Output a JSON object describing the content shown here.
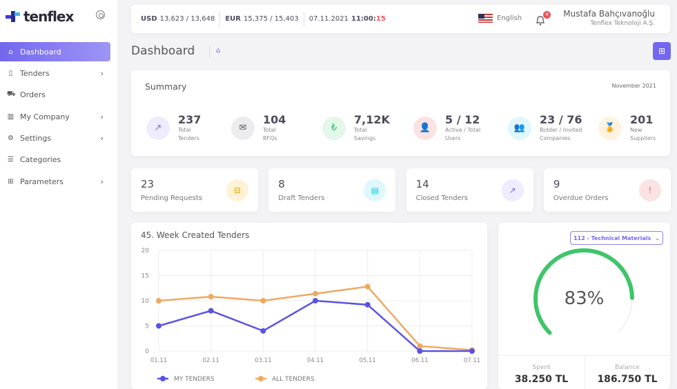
{
  "brand": "tenflex",
  "sidebar": {
    "items": [
      {
        "label": "Dashboard",
        "icon": "home-icon",
        "glyph": "⌂",
        "chev": false
      },
      {
        "label": "Tenders",
        "icon": "clipboard-icon",
        "glyph": "▯",
        "chev": true
      },
      {
        "label": "Orders",
        "icon": "truck-icon",
        "glyph": "⛟",
        "chev": false
      },
      {
        "label": "My Company",
        "icon": "building-icon",
        "glyph": "▥",
        "chev": true
      },
      {
        "label": "Settings",
        "icon": "gear-icon",
        "glyph": "⚙",
        "chev": true
      },
      {
        "label": "Categories",
        "icon": "list-icon",
        "glyph": "☰",
        "chev": false
      },
      {
        "label": "Parameters",
        "icon": "grid-icon",
        "glyph": "⊞",
        "chev": true
      }
    ]
  },
  "topbar": {
    "usd_label": "USD",
    "usd": "13,623 / 13,648",
    "eur_label": "EUR",
    "eur": "15,375 / 15,403",
    "date": "07.11.2021",
    "time_hm": "11:00:",
    "time_s": "15",
    "language": "English",
    "notifications": "4",
    "user_name": "Mustafa Bahçıvanoğlu",
    "company": "Tenflex Teknoloji A.Ş."
  },
  "page": {
    "title": "Dashboard"
  },
  "summary": {
    "title": "Summary",
    "period": "November 2021",
    "stats": [
      {
        "value": "237",
        "l1": "Total",
        "l2": "Tenders",
        "icon": "trending-up-icon",
        "glyph": "↗",
        "color": "#7367f0",
        "bg": "#eeecfd"
      },
      {
        "value": "104",
        "l1": "Total",
        "l2": "RFQs",
        "icon": "mail-icon",
        "glyph": "✉",
        "color": "#555",
        "bg": "#ececee"
      },
      {
        "value": "7,12K",
        "l1": "Total",
        "l2": "Savings",
        "icon": "lira-icon",
        "glyph": "₺",
        "color": "#28c76f",
        "bg": "#e3f7ea"
      },
      {
        "value": "5 / 12",
        "l1": "Active / Total",
        "l2": "Users",
        "icon": "user-icon",
        "glyph": "👤",
        "color": "#ea5455",
        "bg": "#fbe3e3"
      },
      {
        "value": "23 / 76",
        "l1": "Bidder / Invited",
        "l2": "Companies",
        "icon": "users-icon",
        "glyph": "👥",
        "color": "#00cfe8",
        "bg": "#e0f8fb"
      },
      {
        "value": "201",
        "l1": "New",
        "l2": "Suppliers",
        "icon": "award-icon",
        "glyph": "🏅",
        "color": "#ff9f43",
        "bg": "#fff3df"
      }
    ]
  },
  "cards": [
    {
      "value": "23",
      "label": "Pending Requests",
      "icon": "inbox-icon",
      "glyph": "⊟",
      "color": "#e6a700",
      "bg": "#fff3d6"
    },
    {
      "value": "8",
      "label": "Draft Tenders",
      "icon": "file-icon",
      "glyph": "▤",
      "color": "#00cfe8",
      "bg": "#dff8fb"
    },
    {
      "value": "14",
      "label": "Closed Tenders",
      "icon": "trending-up-icon",
      "glyph": "↗",
      "color": "#7367f0",
      "bg": "#eeecfd"
    },
    {
      "value": "9",
      "label": "Overdue Orders",
      "icon": "alert-circle-icon",
      "glyph": "!",
      "color": "#ea5455",
      "bg": "#fbe3e3"
    }
  ],
  "chart_data": {
    "type": "line",
    "title": "45. Week Created Tenders",
    "categories": [
      "01.11",
      "02.11",
      "03.11",
      "04.11",
      "05.11",
      "06.11",
      "07.11"
    ],
    "ylim": [
      0,
      20
    ],
    "yticks": [
      "0",
      "5",
      "10",
      "15",
      "20"
    ],
    "grid": true,
    "legend": "bottom-left",
    "series": [
      {
        "name": "MY TENDERS",
        "color": "#5a52e0",
        "values": [
          5,
          8,
          4,
          10,
          9.2,
          0,
          0
        ]
      },
      {
        "name": "ALL TENDERS",
        "color": "#f0a860",
        "values": [
          10,
          10.8,
          10,
          11.4,
          12.8,
          1,
          0.2
        ]
      }
    ]
  },
  "budget": {
    "category": "112 - Technical Materials",
    "percent": 83,
    "percent_label": "83%",
    "color": "#3fc56a",
    "spent_label": "Spent",
    "spent": "38.250 TL",
    "balance_label": "Balance",
    "balance": "186.750 TL"
  }
}
